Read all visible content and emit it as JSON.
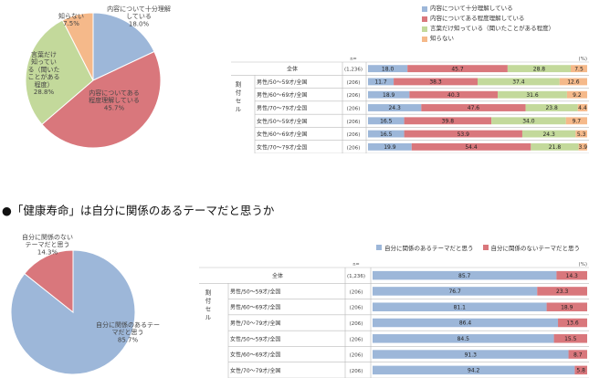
{
  "chart_data": [
    {
      "type": "pie",
      "categories": [
        "内容について十分理解している",
        "内容についてある程度理解している",
        "言葉だけ知っている（聞いたことがある程度）",
        "知らない"
      ],
      "values": [
        18.0,
        45.7,
        28.8,
        7.5
      ],
      "labels": [
        "内容について十分理解\nしている\n18.0%",
        "内容についてある\n程度理解している\n45.7%",
        "言葉だけ\n知ってい\nる（聞いた\nことがある\n程度）\n28.8%",
        "知らない\n7.5%"
      ],
      "colors": [
        "#9db7d9",
        "#d9777c",
        "#c3d99b",
        "#f5b98a"
      ]
    },
    {
      "type": "bar",
      "stacked": true,
      "orientation": "horizontal",
      "series": [
        {
          "name": "内容について十分理解している",
          "color": "#9db7d9",
          "values": [
            18.0,
            11.7,
            18.9,
            24.3,
            16.5,
            16.5,
            19.9
          ]
        },
        {
          "name": "内容についてある程度理解している",
          "color": "#d9777c",
          "values": [
            45.7,
            38.3,
            40.3,
            47.6,
            39.8,
            53.9,
            54.4
          ]
        },
        {
          "name": "言葉だけ知っている（聞いたことがある程度）",
          "color": "#c3d99b",
          "values": [
            28.8,
            37.4,
            31.6,
            23.8,
            34.0,
            24.3,
            21.8
          ]
        },
        {
          "name": "知らない",
          "color": "#f5b98a",
          "values": [
            7.5,
            12.6,
            9.2,
            4.4,
            9.7,
            5.3,
            3.9
          ]
        }
      ],
      "categories": [
        "全体",
        "男性/50〜59才/全国",
        "男性/60〜69才/全国",
        "男性/70〜79才/全国",
        "女性/50〜59才/全国",
        "女性/60〜69才/全国",
        "女性/70〜79才/全国"
      ],
      "n": [
        "(1,236)",
        "(206)",
        "(206)",
        "(206)",
        "(206)",
        "(206)",
        "(206)"
      ],
      "n_header": "n=",
      "unit": "(%)",
      "group_label": "割付セル"
    },
    {
      "type": "pie",
      "categories": [
        "自分に関係のあるテーマだと思う",
        "自分に関係のないテーマだと思う"
      ],
      "values": [
        85.7,
        14.3
      ],
      "labels": [
        "自分に関係のあるテー\nマだと思う\n85.7%",
        "自分に関係のない\nテーマだと思う\n14.3%"
      ],
      "colors": [
        "#9db7d9",
        "#d9777c"
      ]
    },
    {
      "type": "bar",
      "stacked": true,
      "orientation": "horizontal",
      "series": [
        {
          "name": "自分に関係のあるテーマだと思う",
          "color": "#9db7d9",
          "values": [
            85.7,
            76.7,
            81.1,
            86.4,
            84.5,
            91.3,
            94.2
          ]
        },
        {
          "name": "自分に関係のないテーマだと思う",
          "color": "#d9777c",
          "values": [
            14.3,
            23.3,
            18.9,
            13.6,
            15.5,
            8.7,
            5.8
          ]
        }
      ],
      "categories": [
        "全体",
        "男性/50〜59才/全国",
        "男性/60〜69才/全国",
        "男性/70〜79才/全国",
        "女性/50〜59才/全国",
        "女性/60〜69才/全国",
        "女性/70〜79才/全国"
      ],
      "n": [
        "(1,236)",
        "(206)",
        "(206)",
        "(206)",
        "(206)",
        "(206)",
        "(206)"
      ],
      "n_header": "n=",
      "unit": "(%)",
      "group_label": "割付セル"
    }
  ],
  "section_heading": "●「健康寿命」は自分に関係のあるテーマだと思うか"
}
